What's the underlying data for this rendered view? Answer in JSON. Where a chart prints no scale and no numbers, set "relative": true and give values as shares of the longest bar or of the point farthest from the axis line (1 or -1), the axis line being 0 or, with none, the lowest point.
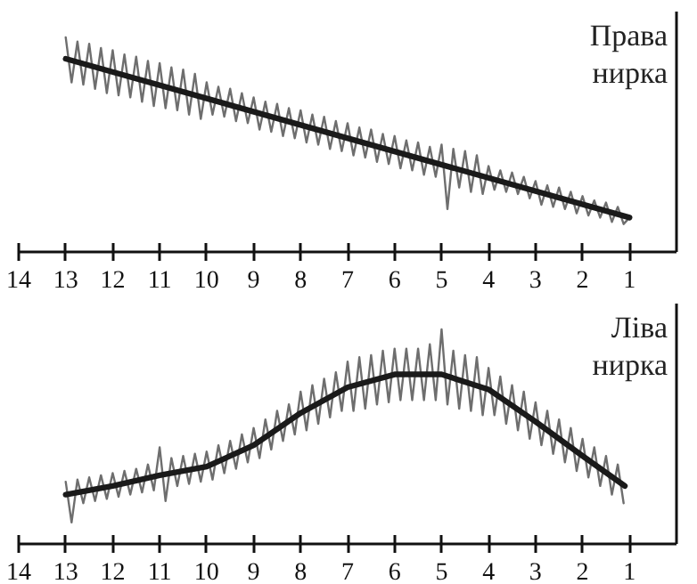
{
  "chart_data": [
    {
      "type": "line",
      "title": "Права нирка",
      "relative": true,
      "xlim": [
        14,
        0
      ],
      "xticks": [
        14,
        13,
        12,
        11,
        10,
        9,
        8,
        7,
        6,
        5,
        4,
        3,
        2,
        1
      ],
      "grid": false,
      "series": [
        {
          "color": "#6e6e6e",
          "x": [
            13,
            12.875,
            12.75,
            12.625,
            12.5,
            12.375,
            12.25,
            12.125,
            12,
            11.875,
            11.75,
            11.625,
            11.5,
            11.375,
            11.25,
            11.125,
            11,
            10.875,
            10.75,
            10.625,
            10.5,
            10.375,
            10.25,
            10.125,
            10,
            9.875,
            9.75,
            9.625,
            9.5,
            9.375,
            9.25,
            9.125,
            9,
            8.875,
            8.75,
            8.625,
            8.5,
            8.375,
            8.25,
            8.125,
            8,
            7.875,
            7.75,
            7.625,
            7.5,
            7.375,
            7.25,
            7.125,
            7,
            6.875,
            6.75,
            6.625,
            6.5,
            6.375,
            6.25,
            6.125,
            6,
            5.875,
            5.75,
            5.625,
            5.5,
            5.375,
            5.25,
            5.125,
            5,
            4.875,
            4.75,
            4.625,
            4.5,
            4.375,
            4.25,
            4.125,
            4,
            3.875,
            3.75,
            3.625,
            3.5,
            3.375,
            3.25,
            3.125,
            3,
            2.875,
            2.75,
            2.625,
            2.5,
            2.375,
            2.25,
            2.125,
            2,
            1.875,
            1.75,
            1.625,
            1.5,
            1.375,
            1.25,
            1.125,
            1
          ],
          "values": [
            1.0,
            0.79,
            0.98,
            0.78,
            0.97,
            0.76,
            0.95,
            0.74,
            0.94,
            0.73,
            0.92,
            0.72,
            0.91,
            0.7,
            0.89,
            0.68,
            0.88,
            0.67,
            0.86,
            0.66,
            0.85,
            0.64,
            0.83,
            0.62,
            0.79,
            0.64,
            0.77,
            0.63,
            0.76,
            0.61,
            0.74,
            0.6,
            0.72,
            0.57,
            0.7,
            0.56,
            0.69,
            0.54,
            0.67,
            0.53,
            0.66,
            0.51,
            0.64,
            0.5,
            0.63,
            0.48,
            0.61,
            0.47,
            0.6,
            0.45,
            0.58,
            0.44,
            0.57,
            0.42,
            0.55,
            0.41,
            0.54,
            0.39,
            0.52,
            0.38,
            0.51,
            0.36,
            0.49,
            0.35,
            0.5,
            0.2,
            0.48,
            0.3,
            0.47,
            0.28,
            0.45,
            0.27,
            0.4,
            0.29,
            0.38,
            0.28,
            0.37,
            0.27,
            0.35,
            0.25,
            0.33,
            0.22,
            0.31,
            0.21,
            0.3,
            0.2,
            0.28,
            0.18,
            0.26,
            0.17,
            0.24,
            0.16,
            0.23,
            0.14,
            0.21,
            0.13,
            0.16
          ]
        },
        {
          "color": "#1a1a1a",
          "x": [
            13,
            1
          ],
          "values": [
            0.9,
            0.16
          ]
        }
      ]
    },
    {
      "type": "line",
      "title": "Ліва нирка",
      "relative": true,
      "xlim": [
        14,
        0
      ],
      "xticks": [
        14,
        13,
        12,
        11,
        10,
        9,
        8,
        7,
        6,
        5,
        4,
        3,
        2,
        1
      ],
      "grid": false,
      "series": [
        {
          "color": "#6e6e6e",
          "x": [
            13,
            12.875,
            12.75,
            12.625,
            12.5,
            12.375,
            12.25,
            12.125,
            12,
            11.875,
            11.75,
            11.625,
            11.5,
            11.375,
            11.25,
            11.125,
            11,
            10.875,
            10.75,
            10.625,
            10.5,
            10.375,
            10.25,
            10.125,
            10,
            9.875,
            9.75,
            9.625,
            9.5,
            9.375,
            9.25,
            9.125,
            9,
            8.875,
            8.75,
            8.625,
            8.5,
            8.375,
            8.25,
            8.125,
            8,
            7.875,
            7.75,
            7.625,
            7.5,
            7.375,
            7.25,
            7.125,
            7,
            6.875,
            6.75,
            6.625,
            6.5,
            6.375,
            6.25,
            6.125,
            6,
            5.875,
            5.75,
            5.625,
            5.5,
            5.375,
            5.25,
            5.125,
            5,
            4.875,
            4.75,
            4.625,
            4.5,
            4.375,
            4.25,
            4.125,
            4,
            3.875,
            3.75,
            3.625,
            3.5,
            3.375,
            3.25,
            3.125,
            3,
            2.875,
            2.75,
            2.625,
            2.5,
            2.375,
            2.25,
            2.125,
            2,
            1.875,
            1.75,
            1.625,
            1.5,
            1.375,
            1.25,
            1.125
          ],
          "values": [
            0.29,
            0.1,
            0.3,
            0.19,
            0.31,
            0.2,
            0.32,
            0.21,
            0.33,
            0.22,
            0.34,
            0.23,
            0.35,
            0.24,
            0.37,
            0.25,
            0.45,
            0.2,
            0.4,
            0.27,
            0.41,
            0.28,
            0.42,
            0.29,
            0.43,
            0.3,
            0.46,
            0.33,
            0.48,
            0.35,
            0.51,
            0.38,
            0.54,
            0.4,
            0.58,
            0.44,
            0.62,
            0.48,
            0.65,
            0.51,
            0.71,
            0.53,
            0.74,
            0.56,
            0.77,
            0.59,
            0.8,
            0.62,
            0.85,
            0.62,
            0.87,
            0.63,
            0.88,
            0.65,
            0.9,
            0.66,
            0.91,
            0.67,
            0.91,
            0.67,
            0.91,
            0.67,
            0.93,
            0.67,
            1.0,
            0.65,
            0.9,
            0.63,
            0.88,
            0.62,
            0.87,
            0.6,
            0.82,
            0.6,
            0.78,
            0.56,
            0.74,
            0.53,
            0.71,
            0.49,
            0.66,
            0.46,
            0.62,
            0.42,
            0.58,
            0.38,
            0.54,
            0.34,
            0.49,
            0.31,
            0.45,
            0.27,
            0.41,
            0.23,
            0.37,
            0.19
          ]
        },
        {
          "color": "#1a1a1a",
          "x": [
            13,
            12,
            11,
            10,
            9,
            8,
            7,
            6,
            5,
            4,
            3,
            2,
            1.1
          ],
          "values": [
            0.23,
            0.27,
            0.32,
            0.36,
            0.46,
            0.61,
            0.73,
            0.79,
            0.79,
            0.72,
            0.57,
            0.41,
            0.27
          ]
        }
      ]
    }
  ]
}
